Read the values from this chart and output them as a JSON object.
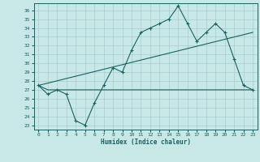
{
  "xlabel": "Humidex (Indice chaleur)",
  "xlim": [
    -0.5,
    23.5
  ],
  "ylim": [
    22.5,
    36.8
  ],
  "yticks": [
    23,
    24,
    25,
    26,
    27,
    28,
    29,
    30,
    31,
    32,
    33,
    34,
    35,
    36
  ],
  "xticks": [
    0,
    1,
    2,
    3,
    4,
    5,
    6,
    7,
    8,
    9,
    10,
    11,
    12,
    13,
    14,
    15,
    16,
    17,
    18,
    19,
    20,
    21,
    22,
    23
  ],
  "bg_color": "#c8e8e8",
  "grid_color": "#a8cccc",
  "line_color": "#1a6060",
  "line1_y": [
    27.5,
    26.5,
    27.0,
    26.5,
    23.5,
    23.0,
    25.5,
    27.5,
    29.5,
    29.0,
    31.5,
    33.5,
    34.0,
    34.5,
    35.0,
    36.5,
    34.5,
    32.5,
    33.5,
    34.5,
    33.5,
    30.5,
    27.5,
    27.0
  ],
  "line2_y": [
    27.5,
    27.0,
    27.0,
    27.0,
    27.0,
    27.0,
    27.0,
    27.0,
    27.0,
    27.0,
    27.0,
    27.0,
    27.0,
    27.0,
    27.0,
    27.0,
    27.0,
    27.0,
    27.0,
    27.0,
    27.0,
    27.0,
    27.0,
    27.0
  ],
  "line3_x": [
    0,
    23
  ],
  "line3_y": [
    27.5,
    33.5
  ]
}
